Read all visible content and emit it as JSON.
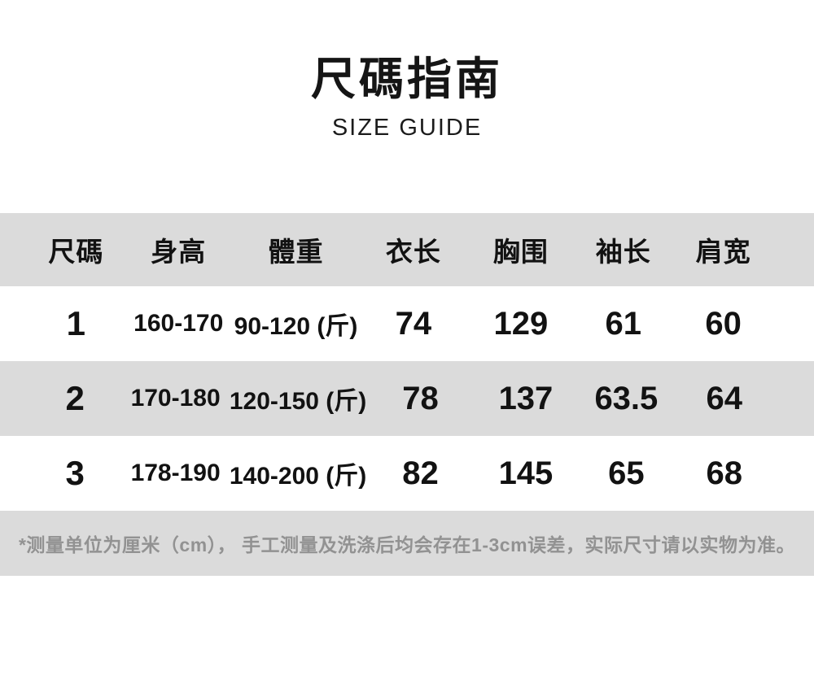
{
  "title": {
    "zh": "尺碼指南",
    "en": "SIZE GUIDE"
  },
  "table": {
    "headers": [
      "尺碼",
      "身高",
      "體重",
      "衣长",
      "胸围",
      "袖长",
      "肩宽"
    ],
    "rows": [
      [
        "1",
        "160-170",
        "90-120 (斤)",
        "74",
        "129",
        "61",
        "60"
      ],
      [
        "2",
        "170-180",
        "120-150 (斤)",
        "78",
        "137",
        "63.5",
        "64"
      ],
      [
        "3",
        "178-190",
        "140-200 (斤)",
        "82",
        "145",
        "65",
        "68"
      ]
    ]
  },
  "note": "*测量单位为厘米（cm）， 手工测量及洗涤后均会存在1-3cm误差，实际尺寸请以实物为准。",
  "colors": {
    "band": "#dbdbdb",
    "text": "#121212",
    "note_text": "#929292"
  }
}
